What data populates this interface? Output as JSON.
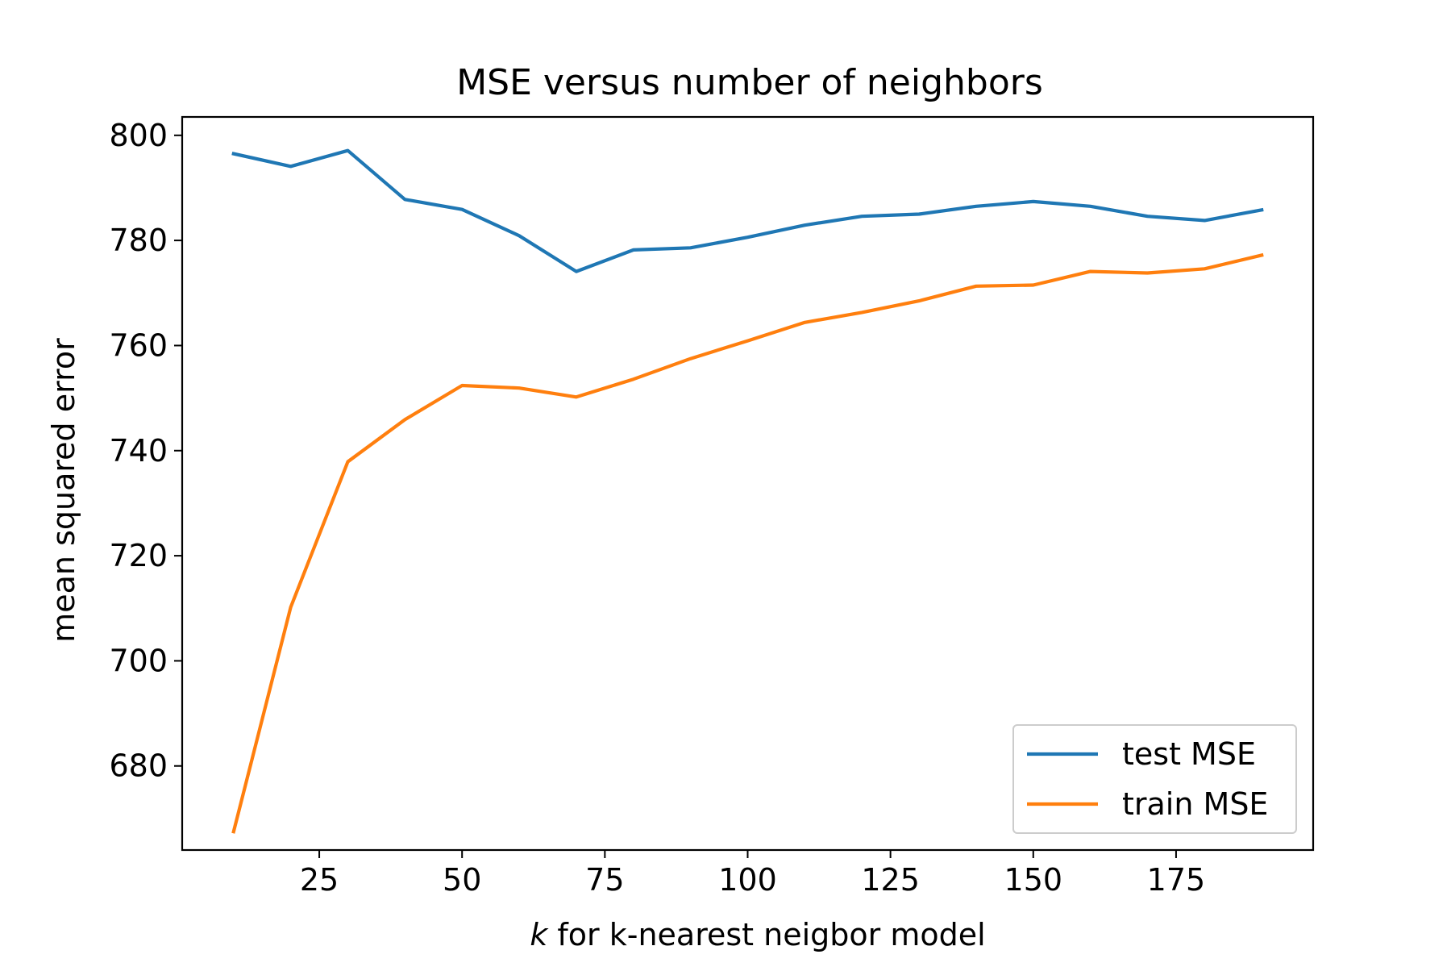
{
  "chart_data": {
    "type": "line",
    "title": "MSE versus number of neighbors",
    "xlabel_italic": "k",
    "xlabel_rest": " for k-nearest neigbor model",
    "ylabel": "mean squared error",
    "xlim": [
      1,
      199
    ],
    "ylim": [
      664,
      803.5
    ],
    "xticks": [
      25,
      50,
      75,
      100,
      125,
      150,
      175
    ],
    "yticks": [
      680,
      700,
      720,
      740,
      760,
      780,
      800
    ],
    "grid": false,
    "legend_position": "lower-right",
    "x": [
      10,
      20,
      30,
      40,
      50,
      60,
      70,
      80,
      90,
      100,
      110,
      120,
      130,
      140,
      150,
      160,
      170,
      180,
      190
    ],
    "series": [
      {
        "name": "test MSE",
        "color": "#1f77b4",
        "values": [
          796.5,
          794.1,
          797.1,
          787.8,
          785.9,
          780.9,
          774.1,
          778.2,
          778.6,
          780.6,
          782.9,
          784.6,
          785.0,
          786.5,
          787.4,
          786.5,
          784.6,
          783.8,
          785.8
        ]
      },
      {
        "name": "train MSE",
        "color": "#ff7f0e",
        "values": [
          667.5,
          710.2,
          737.9,
          745.9,
          752.4,
          751.9,
          750.2,
          753.6,
          757.5,
          760.9,
          764.4,
          766.3,
          768.5,
          771.3,
          771.5,
          774.1,
          773.8,
          774.6,
          777.2
        ]
      }
    ]
  }
}
